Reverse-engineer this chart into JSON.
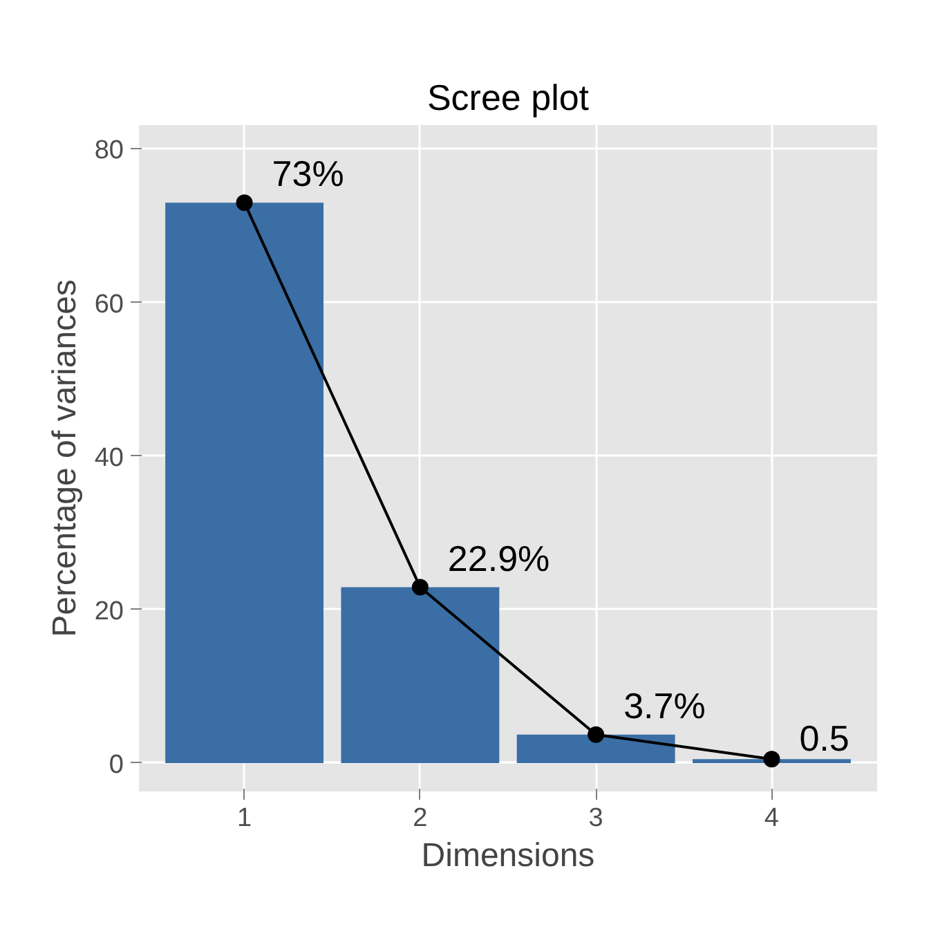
{
  "chart_data": {
    "type": "bar",
    "title": "Scree plot",
    "xlabel": "Dimensions",
    "ylabel": "Percentage of variances",
    "categories": [
      "1",
      "2",
      "3",
      "4"
    ],
    "series": [
      {
        "color": "#3a6ea5",
        "values": [
          73,
          22.9,
          3.7,
          0.5
        ],
        "value_labels": [
          "73%",
          "22.9%",
          "3.7%",
          "0.5"
        ]
      },
      {
        "type": "line",
        "color": "#000000",
        "values": [
          73,
          22.9,
          3.7,
          0.5
        ]
      }
    ],
    "marker": "circle",
    "ylim": [
      -3.7,
      83.1
    ],
    "yticks": [
      0,
      20,
      40,
      60,
      80
    ],
    "grid": true
  }
}
